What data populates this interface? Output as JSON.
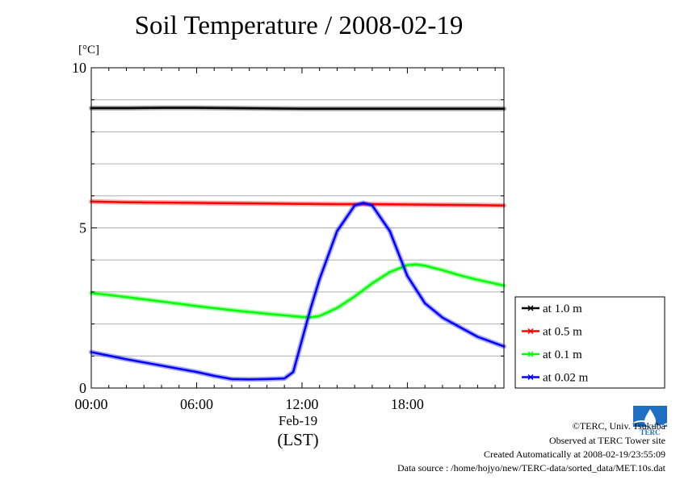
{
  "chart_data": {
    "type": "line",
    "title": "Soil Temperature / 2008-02-19",
    "ylabel": "[°C]",
    "ylim": [
      0,
      10
    ],
    "yticks": [
      "0",
      "5",
      "10"
    ],
    "xlim": [
      0,
      23.5
    ],
    "xticks": [
      {
        "x": 0,
        "label": "00:00"
      },
      {
        "x": 6,
        "label": "06:00"
      },
      {
        "x": 12,
        "label": "12:00"
      },
      {
        "x": 18,
        "label": "18:00"
      }
    ],
    "xsublabel": "Feb-19",
    "xunit": "(LST)",
    "grid": "horizontal",
    "legend_position": "right",
    "series": [
      {
        "name": "at 1.0 m",
        "color": "#000000",
        "x": [
          0,
          2,
          4,
          6,
          8,
          10,
          12,
          14,
          16,
          18,
          20,
          22,
          23.5
        ],
        "values": [
          8.74,
          8.74,
          8.75,
          8.75,
          8.74,
          8.73,
          8.72,
          8.72,
          8.72,
          8.72,
          8.72,
          8.72,
          8.72
        ]
      },
      {
        "name": "at 0.5 m",
        "color": "#ff0000",
        "x": [
          0,
          2,
          4,
          6,
          8,
          10,
          12,
          14,
          16,
          18,
          20,
          22,
          23.5
        ],
        "values": [
          5.82,
          5.8,
          5.79,
          5.78,
          5.77,
          5.76,
          5.75,
          5.74,
          5.74,
          5.73,
          5.72,
          5.71,
          5.7
        ]
      },
      {
        "name": "at 0.1 m",
        "color": "#00ff00",
        "x": [
          0,
          2,
          4,
          6,
          8,
          10,
          11,
          12,
          12.5,
          13,
          14,
          15,
          16,
          17,
          18,
          18.5,
          19,
          20,
          21,
          22,
          23.5
        ],
        "values": [
          2.97,
          2.84,
          2.7,
          2.56,
          2.43,
          2.32,
          2.27,
          2.22,
          2.21,
          2.25,
          2.5,
          2.86,
          3.27,
          3.62,
          3.84,
          3.86,
          3.82,
          3.68,
          3.52,
          3.38,
          3.2
        ]
      },
      {
        "name": "at 0.02 m",
        "color": "#0000ff",
        "x": [
          0,
          2,
          4,
          6,
          7,
          8,
          9,
          10,
          11,
          11.5,
          12,
          12.5,
          13,
          14,
          15,
          15.5,
          16,
          17,
          17.5,
          18,
          19,
          20,
          21,
          22,
          23.5
        ],
        "values": [
          1.12,
          0.9,
          0.7,
          0.5,
          0.38,
          0.28,
          0.27,
          0.28,
          0.3,
          0.5,
          1.5,
          2.5,
          3.4,
          4.9,
          5.7,
          5.78,
          5.7,
          4.9,
          4.2,
          3.5,
          2.65,
          2.2,
          1.9,
          1.6,
          1.3
        ]
      }
    ]
  },
  "credits": {
    "copyright": "©TERC, Univ. Tsukuba",
    "observed": "Observed at TERC Tower site",
    "created": "Created Automatically at 2008-02-19/23:55:09",
    "source": "Data source : /home/hojyo/new/TERC-data/sorted_data/MET.10s.dat",
    "logo_text": "TERC",
    "logo_color": "#1e6fc4"
  }
}
